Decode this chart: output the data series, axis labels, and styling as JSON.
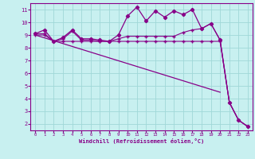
{
  "xlabel": "Windchill (Refroidissement éolien,°C)",
  "bg_color": "#c8f0f0",
  "grid_color": "#a0d8d8",
  "line_color": "#880088",
  "xlim": [
    -0.5,
    23.5
  ],
  "ylim": [
    1.5,
    11.5
  ],
  "xticks": [
    0,
    1,
    2,
    3,
    4,
    5,
    6,
    7,
    8,
    9,
    10,
    11,
    12,
    13,
    14,
    15,
    16,
    17,
    18,
    19,
    20,
    21,
    22,
    23
  ],
  "yticks": [
    2,
    3,
    4,
    5,
    6,
    7,
    8,
    9,
    10,
    11
  ],
  "line1_x": [
    0,
    1,
    2,
    3,
    4,
    5,
    6,
    7,
    8,
    9,
    10,
    11,
    12,
    13,
    14,
    15,
    16,
    17,
    18,
    19,
    20,
    21,
    22,
    23
  ],
  "line1_y": [
    9.1,
    9.4,
    8.5,
    8.8,
    9.4,
    8.7,
    8.7,
    8.6,
    8.5,
    9.0,
    10.5,
    11.2,
    10.1,
    10.9,
    10.4,
    10.9,
    10.6,
    11.0,
    9.5,
    9.9,
    8.6,
    3.7,
    2.3,
    1.8
  ],
  "line2_x": [
    0,
    1,
    2,
    3,
    4,
    5,
    6,
    7,
    8,
    9,
    10,
    11,
    12,
    13,
    14,
    15,
    16,
    17,
    18,
    19,
    20,
    21,
    22,
    23
  ],
  "line2_y": [
    9.1,
    9.1,
    8.5,
    8.7,
    9.3,
    8.6,
    8.6,
    8.5,
    8.5,
    8.7,
    8.9,
    8.9,
    8.9,
    8.9,
    8.9,
    8.9,
    9.2,
    9.4,
    9.5,
    9.9,
    8.6,
    3.7,
    2.3,
    1.8
  ],
  "line3_x": [
    0,
    1,
    2,
    3,
    4,
    5,
    6,
    7,
    8,
    9,
    10,
    11,
    12,
    13,
    14,
    15,
    16,
    17,
    18,
    19,
    20,
    21,
    22,
    23
  ],
  "line3_y": [
    9.0,
    9.0,
    8.5,
    8.5,
    8.5,
    8.5,
    8.5,
    8.5,
    8.5,
    8.5,
    8.5,
    8.5,
    8.5,
    8.5,
    8.5,
    8.5,
    8.5,
    8.5,
    8.5,
    8.5,
    8.5,
    3.7,
    2.3,
    1.8
  ],
  "line4_x": [
    0,
    20
  ],
  "line4_y": [
    9.0,
    4.5
  ]
}
